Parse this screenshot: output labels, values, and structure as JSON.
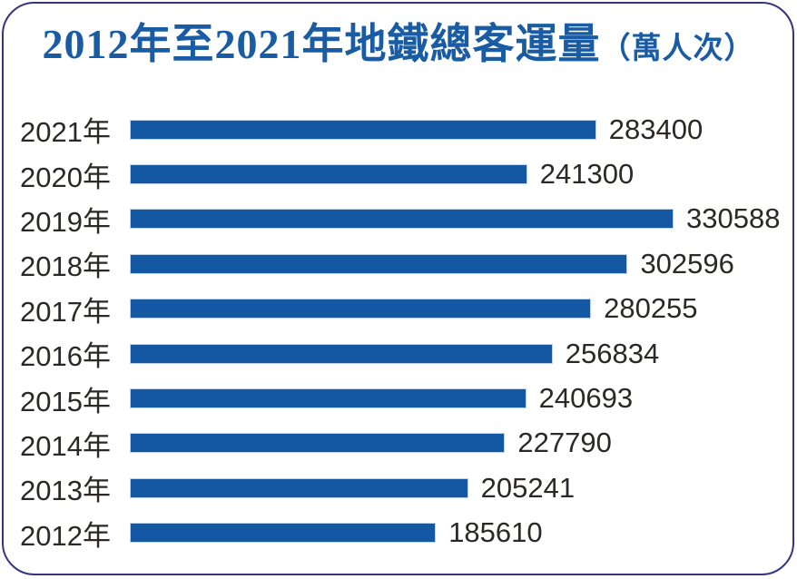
{
  "title": {
    "main": "2012年至2021年地鐵總客運量",
    "unit": "（萬人次）"
  },
  "chart_data": {
    "type": "bar",
    "orientation": "horizontal",
    "title": "2012年至2021年地鐵總客運量（萬人次）",
    "unit": "萬人次",
    "categories": [
      "2021年",
      "2020年",
      "2019年",
      "2018年",
      "2017年",
      "2016年",
      "2015年",
      "2014年",
      "2013年",
      "2012年"
    ],
    "values": [
      283400,
      241300,
      330588,
      302596,
      280255,
      256834,
      240693,
      227790,
      205241,
      185610
    ],
    "xlabel": "",
    "ylabel": "",
    "xlim": [
      0,
      330588
    ],
    "grid": false,
    "legend": false,
    "value_labels_shown": true,
    "bar_color": "#1458A3",
    "bar_edge_color": "#BAD3EA"
  },
  "colors": {
    "title_text": "#1A5CA4",
    "label_text": "#2B2826",
    "frame_border": "#34357E",
    "background": "#FFFFFF"
  }
}
